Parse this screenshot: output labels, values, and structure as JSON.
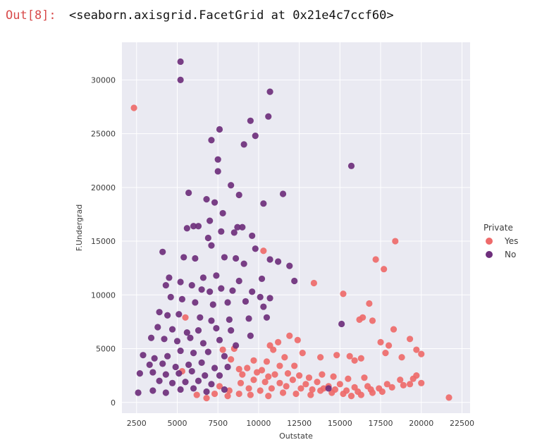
{
  "cell": {
    "prompt": "Out[8]:",
    "output_text": "<seaborn.axisgrid.FacetGrid at 0x21e4c7ccf60>"
  },
  "chart_data": {
    "type": "scatter",
    "xlabel": "Outstate",
    "ylabel": "F.Undergrad",
    "xlim": [
      1600,
      23000
    ],
    "ylim": [
      -1000,
      33500
    ],
    "x_ticks": [
      2500,
      5000,
      7500,
      10000,
      12500,
      15000,
      17500,
      20000,
      22500
    ],
    "y_ticks": [
      0,
      5000,
      10000,
      15000,
      20000,
      25000,
      30000
    ],
    "grid": true,
    "legend": {
      "title": "Private",
      "placement": "right"
    },
    "series": [
      {
        "name": "Yes",
        "color": "#ee6a6a",
        "points": [
          [
            2340,
            27400
          ],
          [
            21700,
            450
          ],
          [
            18400,
            15000
          ],
          [
            17200,
            13300
          ],
          [
            17700,
            12400
          ],
          [
            13400,
            11100
          ],
          [
            15200,
            10100
          ],
          [
            10300,
            14100
          ],
          [
            16200,
            7700
          ],
          [
            16400,
            7900
          ],
          [
            16800,
            9200
          ],
          [
            17000,
            7600
          ],
          [
            18300,
            6800
          ],
          [
            17500,
            5600
          ],
          [
            18000,
            5300
          ],
          [
            19300,
            5900
          ],
          [
            19700,
            4900
          ],
          [
            20000,
            4500
          ],
          [
            18800,
            4200
          ],
          [
            17800,
            4600
          ],
          [
            16300,
            4100
          ],
          [
            15900,
            3900
          ],
          [
            15600,
            4300
          ],
          [
            14800,
            4400
          ],
          [
            13800,
            4200
          ],
          [
            12700,
            4600
          ],
          [
            12200,
            3400
          ],
          [
            11600,
            4200
          ],
          [
            11300,
            3400
          ],
          [
            10900,
            4900
          ],
          [
            10500,
            3800
          ],
          [
            10200,
            3000
          ],
          [
            9700,
            3900
          ],
          [
            9300,
            3200
          ],
          [
            8800,
            3100
          ],
          [
            8500,
            5000
          ],
          [
            7800,
            4900
          ],
          [
            8300,
            4000
          ],
          [
            11900,
            6200
          ],
          [
            12400,
            5800
          ],
          [
            11200,
            5600
          ],
          [
            10700,
            5300
          ],
          [
            5500,
            7900
          ],
          [
            5300,
            2900
          ],
          [
            6200,
            700
          ],
          [
            6800,
            400
          ],
          [
            7300,
            800
          ],
          [
            8100,
            600
          ],
          [
            9500,
            700
          ],
          [
            10600,
            600
          ],
          [
            11500,
            900
          ],
          [
            12300,
            800
          ],
          [
            13200,
            700
          ],
          [
            13800,
            1100
          ],
          [
            14500,
            900
          ],
          [
            15200,
            800
          ],
          [
            15700,
            600
          ],
          [
            16300,
            700
          ],
          [
            17000,
            900
          ],
          [
            17600,
            1000
          ],
          [
            18200,
            1400
          ],
          [
            18700,
            2100
          ],
          [
            19300,
            1700
          ],
          [
            19700,
            2500
          ],
          [
            8900,
            1800
          ],
          [
            9700,
            2100
          ],
          [
            10400,
            1900
          ],
          [
            11300,
            1800
          ],
          [
            12100,
            2100
          ],
          [
            12900,
            1700
          ],
          [
            13600,
            1900
          ],
          [
            14300,
            1500
          ],
          [
            15000,
            1700
          ],
          [
            15900,
            1400
          ],
          [
            16700,
            1500
          ],
          [
            17400,
            1300
          ],
          [
            7600,
            1500
          ],
          [
            8200,
            1100
          ],
          [
            8800,
            800
          ],
          [
            9400,
            1300
          ],
          [
            10100,
            1100
          ],
          [
            10800,
            1300
          ],
          [
            11700,
            1500
          ],
          [
            12600,
            1300
          ],
          [
            13300,
            1200
          ],
          [
            14000,
            1300
          ],
          [
            14700,
            1200
          ],
          [
            15400,
            1100
          ],
          [
            16100,
            1000
          ],
          [
            16900,
            1200
          ],
          [
            17900,
            1700
          ],
          [
            18900,
            1600
          ],
          [
            19500,
            2200
          ],
          [
            20000,
            1800
          ],
          [
            11000,
            2600
          ],
          [
            11800,
            2700
          ],
          [
            12500,
            2500
          ],
          [
            13100,
            2300
          ],
          [
            13900,
            2600
          ],
          [
            14600,
            2400
          ],
          [
            15500,
            2200
          ],
          [
            16500,
            2300
          ],
          [
            9000,
            2600
          ],
          [
            9900,
            2800
          ],
          [
            10600,
            2400
          ]
        ]
      },
      {
        "name": "No",
        "color": "#6e2f7c",
        "points": [
          [
            5200,
            31700
          ],
          [
            5200,
            30000
          ],
          [
            10700,
            28900
          ],
          [
            10600,
            26600
          ],
          [
            9500,
            26200
          ],
          [
            7600,
            25400
          ],
          [
            9800,
            24800
          ],
          [
            7100,
            24400
          ],
          [
            9100,
            24000
          ],
          [
            7500,
            22600
          ],
          [
            15700,
            22000
          ],
          [
            7500,
            21500
          ],
          [
            8300,
            20200
          ],
          [
            5700,
            19500
          ],
          [
            11500,
            19400
          ],
          [
            8800,
            19300
          ],
          [
            6800,
            18900
          ],
          [
            7300,
            18600
          ],
          [
            10300,
            18500
          ],
          [
            7800,
            17600
          ],
          [
            7000,
            16900
          ],
          [
            6300,
            16400
          ],
          [
            6000,
            16400
          ],
          [
            5600,
            16200
          ],
          [
            8700,
            16300
          ],
          [
            9000,
            16300
          ],
          [
            8500,
            15800
          ],
          [
            7700,
            15900
          ],
          [
            6900,
            15300
          ],
          [
            9600,
            15500
          ],
          [
            7100,
            14600
          ],
          [
            9800,
            14300
          ],
          [
            6100,
            13400
          ],
          [
            5400,
            13500
          ],
          [
            4100,
            14000
          ],
          [
            7900,
            13500
          ],
          [
            8600,
            13400
          ],
          [
            9100,
            12900
          ],
          [
            10700,
            13300
          ],
          [
            11200,
            13100
          ],
          [
            11900,
            12700
          ],
          [
            4500,
            11600
          ],
          [
            5200,
            11200
          ],
          [
            6600,
            11600
          ],
          [
            7400,
            11800
          ],
          [
            8800,
            11300
          ],
          [
            10200,
            11500
          ],
          [
            12200,
            11300
          ],
          [
            4300,
            10900
          ],
          [
            5900,
            10900
          ],
          [
            6500,
            10500
          ],
          [
            7000,
            10300
          ],
          [
            7700,
            10600
          ],
          [
            8400,
            10400
          ],
          [
            9600,
            10300
          ],
          [
            10100,
            9800
          ],
          [
            10700,
            9700
          ],
          [
            4600,
            9800
          ],
          [
            5300,
            9600
          ],
          [
            6100,
            9300
          ],
          [
            7200,
            9100
          ],
          [
            8100,
            9300
          ],
          [
            9200,
            9400
          ],
          [
            10300,
            8900
          ],
          [
            3900,
            8400
          ],
          [
            4400,
            8100
          ],
          [
            5100,
            8200
          ],
          [
            6400,
            7900
          ],
          [
            7100,
            7600
          ],
          [
            8200,
            7700
          ],
          [
            9400,
            7800
          ],
          [
            10500,
            7900
          ],
          [
            3800,
            7000
          ],
          [
            4700,
            6800
          ],
          [
            5600,
            6500
          ],
          [
            6300,
            6700
          ],
          [
            7400,
            6900
          ],
          [
            8300,
            6700
          ],
          [
            9500,
            6200
          ],
          [
            3400,
            6000
          ],
          [
            4200,
            5900
          ],
          [
            5000,
            5700
          ],
          [
            5800,
            6000
          ],
          [
            6600,
            5500
          ],
          [
            7600,
            5800
          ],
          [
            8600,
            5300
          ],
          [
            15100,
            7300
          ],
          [
            2900,
            4400
          ],
          [
            3600,
            4100
          ],
          [
            4400,
            4300
          ],
          [
            5200,
            4800
          ],
          [
            6000,
            4600
          ],
          [
            6900,
            4700
          ],
          [
            7900,
            4300
          ],
          [
            3300,
            3500
          ],
          [
            4100,
            3600
          ],
          [
            4900,
            3300
          ],
          [
            5700,
            3500
          ],
          [
            6500,
            3700
          ],
          [
            7300,
            3200
          ],
          [
            8100,
            3300
          ],
          [
            2700,
            2700
          ],
          [
            3500,
            2800
          ],
          [
            4300,
            2600
          ],
          [
            5100,
            2700
          ],
          [
            5900,
            2900
          ],
          [
            6700,
            2500
          ],
          [
            7600,
            2500
          ],
          [
            3900,
            2000
          ],
          [
            4700,
            1800
          ],
          [
            5500,
            1900
          ],
          [
            6300,
            2000
          ],
          [
            7100,
            1700
          ],
          [
            2600,
            900
          ],
          [
            3500,
            1100
          ],
          [
            4300,
            900
          ],
          [
            5200,
            1200
          ],
          [
            6000,
            1300
          ],
          [
            6800,
            1000
          ],
          [
            7900,
            1200
          ],
          [
            14300,
            1300
          ]
        ]
      }
    ]
  }
}
